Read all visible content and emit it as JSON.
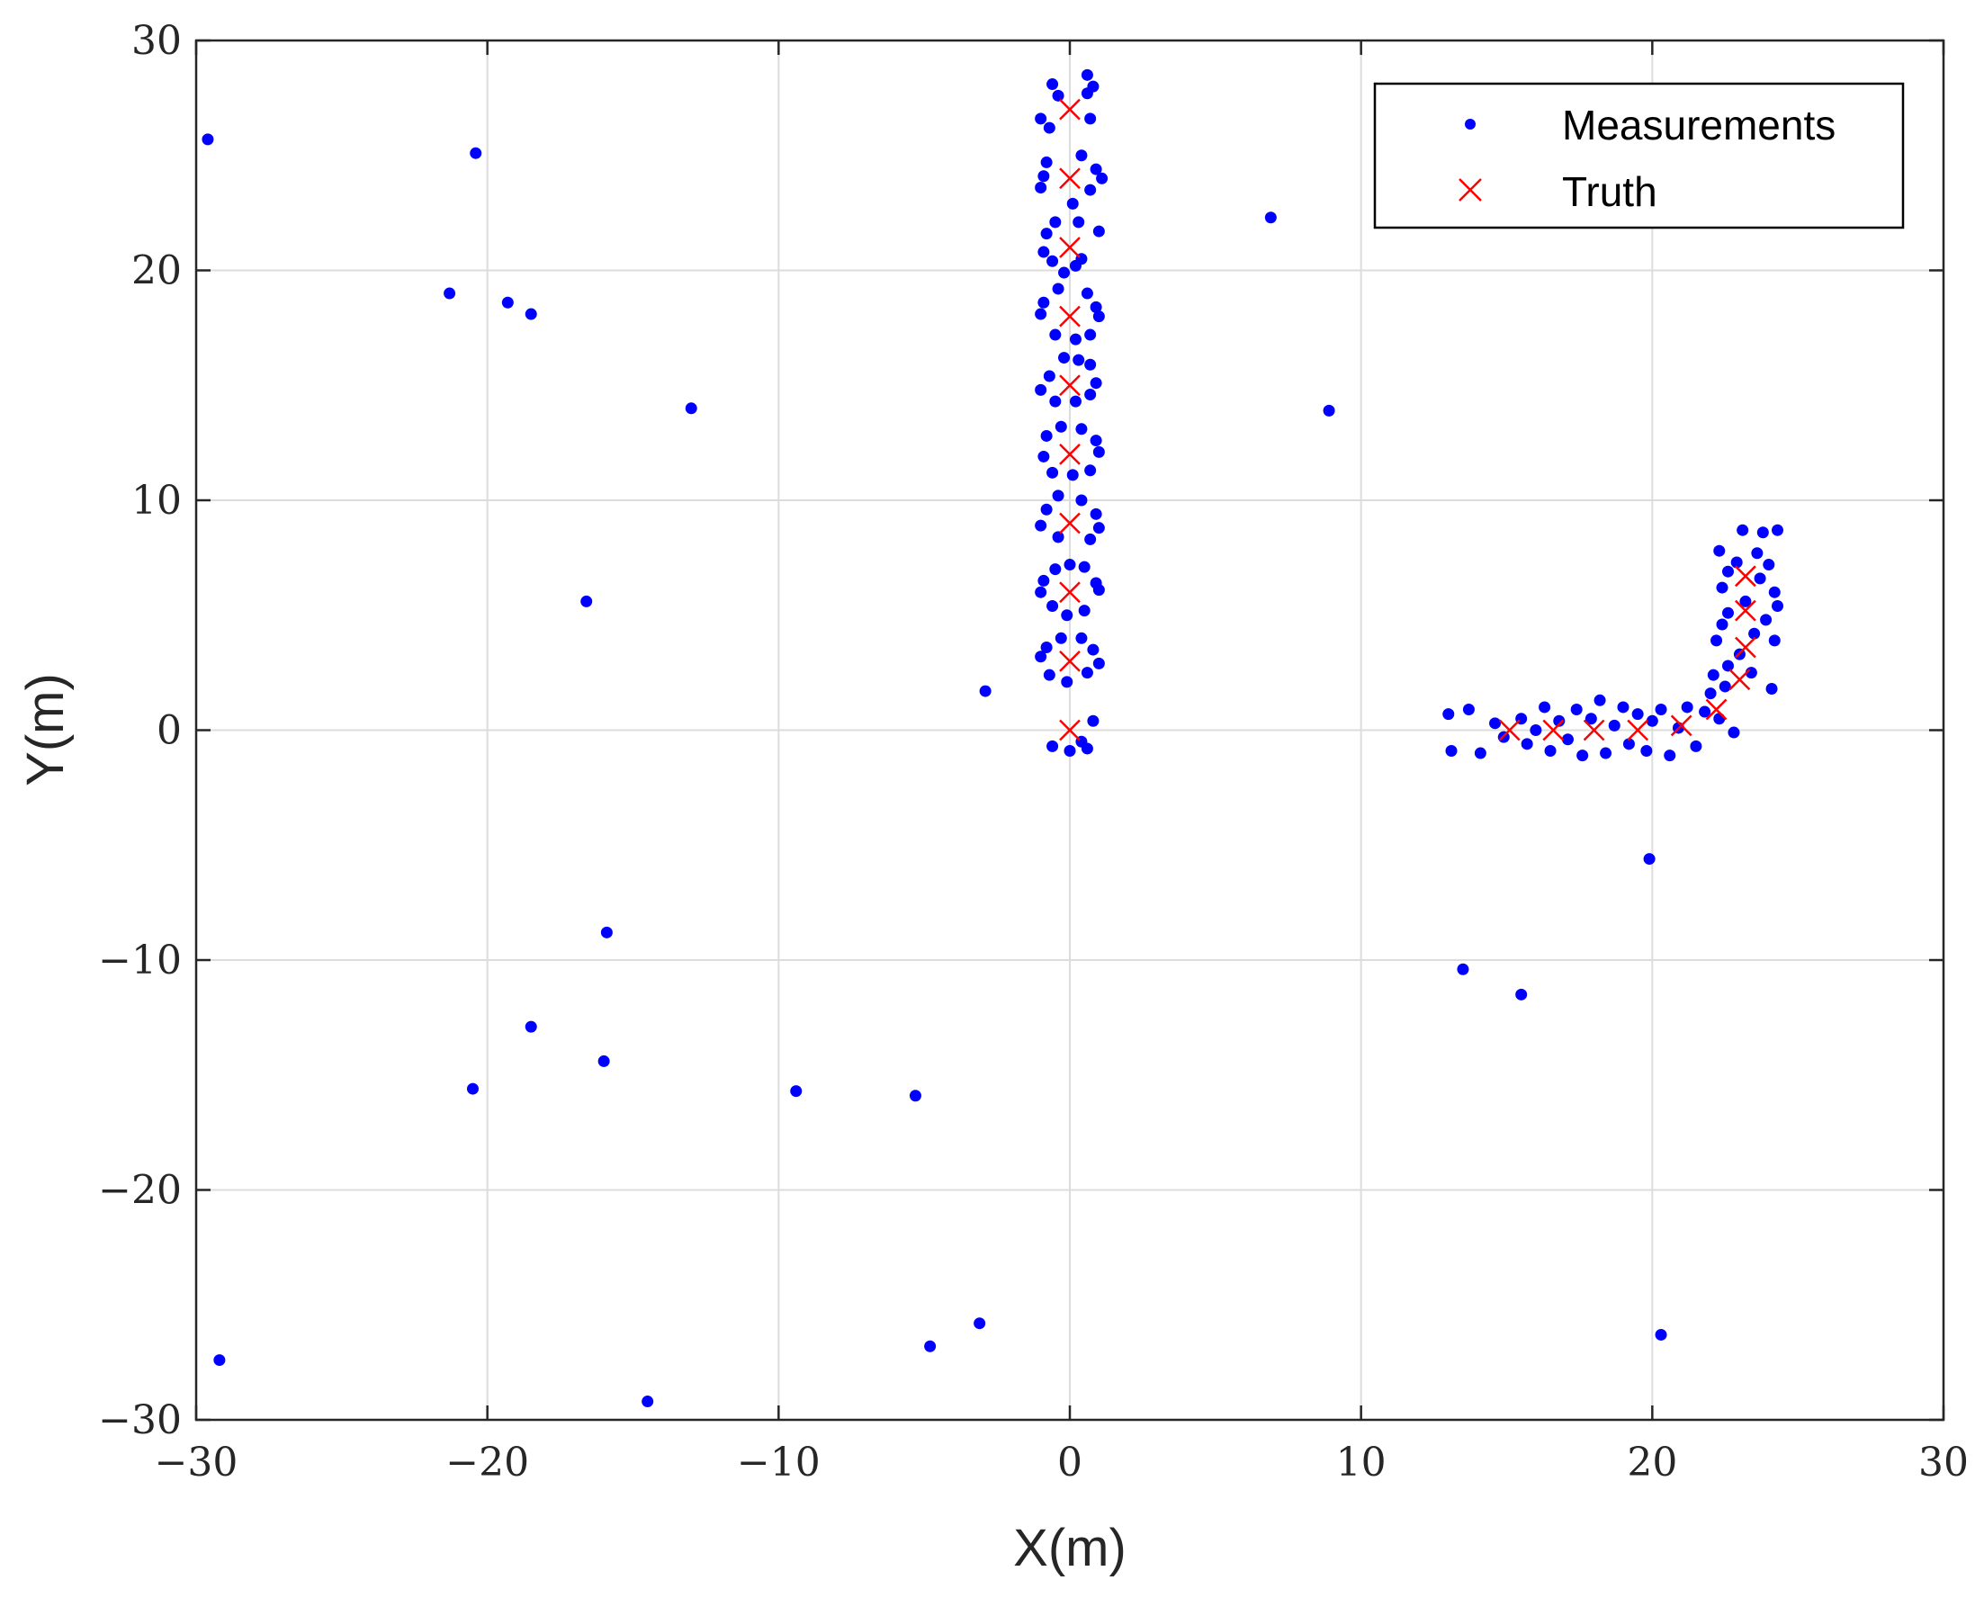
{
  "chart_data": {
    "type": "scatter",
    "xlabel": "X(m)",
    "ylabel": "Y(m)",
    "xlim": [
      -30,
      30
    ],
    "ylim": [
      -30,
      30
    ],
    "xticks": [
      -30,
      -20,
      -10,
      0,
      10,
      20,
      30
    ],
    "yticks": [
      -30,
      -20,
      -10,
      0,
      10,
      20,
      30
    ],
    "xtick_labels": [
      "−30",
      "−20",
      "−10",
      "0",
      "10",
      "20",
      "30"
    ],
    "ytick_labels": [
      "−30",
      "−20",
      "−10",
      "0",
      "10",
      "20",
      "30"
    ],
    "grid": true,
    "legend_position": "top-right",
    "colors": {
      "measurements": "#0000ff",
      "truth": "#ff0000",
      "axes": "#262626",
      "grid": "#dcdcdc"
    },
    "series": [
      {
        "name": "Measurements",
        "marker": "dot",
        "points": [
          [
            -29.6,
            25.7
          ],
          [
            -20.4,
            25.1
          ],
          [
            -21.3,
            19.0
          ],
          [
            -19.3,
            18.6
          ],
          [
            -18.5,
            18.1
          ],
          [
            -13.0,
            14.0
          ],
          [
            -16.6,
            5.6
          ],
          [
            -15.9,
            -8.8
          ],
          [
            -18.5,
            -12.9
          ],
          [
            -16.0,
            -14.4
          ],
          [
            -20.5,
            -15.6
          ],
          [
            -9.4,
            -15.7
          ],
          [
            -5.3,
            -15.9
          ],
          [
            -3.1,
            -25.8
          ],
          [
            -4.8,
            -26.8
          ],
          [
            -14.5,
            -29.2
          ],
          [
            -29.2,
            -27.4
          ],
          [
            -2.9,
            1.7
          ],
          [
            6.9,
            22.3
          ],
          [
            8.9,
            13.9
          ],
          [
            13.5,
            -10.4
          ],
          [
            15.5,
            -11.5
          ],
          [
            19.9,
            -5.6
          ],
          [
            20.3,
            -26.3
          ],
          [
            -0.6,
            28.1
          ],
          [
            0.6,
            28.5
          ],
          [
            0.8,
            28.0
          ],
          [
            -0.4,
            27.6
          ],
          [
            0.6,
            27.7
          ],
          [
            -1.0,
            26.6
          ],
          [
            -0.7,
            26.2
          ],
          [
            0.7,
            26.6
          ],
          [
            0.4,
            25.0
          ],
          [
            -0.8,
            24.7
          ],
          [
            -0.9,
            24.1
          ],
          [
            0.9,
            24.4
          ],
          [
            1.1,
            24.0
          ],
          [
            -1.0,
            23.6
          ],
          [
            0.7,
            23.5
          ],
          [
            0.1,
            22.9
          ],
          [
            -0.5,
            22.1
          ],
          [
            0.3,
            22.1
          ],
          [
            -0.8,
            21.6
          ],
          [
            1.0,
            21.7
          ],
          [
            -0.9,
            20.8
          ],
          [
            -0.6,
            20.4
          ],
          [
            0.4,
            20.5
          ],
          [
            0.2,
            20.2
          ],
          [
            -0.2,
            19.9
          ],
          [
            -0.4,
            19.2
          ],
          [
            0.6,
            19.0
          ],
          [
            -0.9,
            18.6
          ],
          [
            0.9,
            18.4
          ],
          [
            1.0,
            18.0
          ],
          [
            -1.0,
            18.1
          ],
          [
            -0.5,
            17.2
          ],
          [
            0.2,
            17.0
          ],
          [
            0.7,
            17.2
          ],
          [
            -0.2,
            16.2
          ],
          [
            0.3,
            16.1
          ],
          [
            0.7,
            15.9
          ],
          [
            -0.7,
            15.4
          ],
          [
            0.9,
            15.1
          ],
          [
            -1.0,
            14.8
          ],
          [
            -0.5,
            14.3
          ],
          [
            0.2,
            14.3
          ],
          [
            0.7,
            14.6
          ],
          [
            -0.3,
            13.2
          ],
          [
            0.4,
            13.1
          ],
          [
            -0.8,
            12.8
          ],
          [
            0.9,
            12.6
          ],
          [
            1.0,
            12.1
          ],
          [
            -0.9,
            11.9
          ],
          [
            -0.6,
            11.2
          ],
          [
            0.1,
            11.1
          ],
          [
            0.7,
            11.3
          ],
          [
            -0.4,
            10.2
          ],
          [
            0.4,
            10.0
          ],
          [
            -0.8,
            9.6
          ],
          [
            0.9,
            9.4
          ],
          [
            -1.0,
            8.9
          ],
          [
            1.0,
            8.8
          ],
          [
            -0.4,
            8.4
          ],
          [
            0.7,
            8.3
          ],
          [
            0.0,
            7.2
          ],
          [
            -0.5,
            7.0
          ],
          [
            0.5,
            7.1
          ],
          [
            -0.9,
            6.5
          ],
          [
            0.9,
            6.4
          ],
          [
            -1.0,
            6.0
          ],
          [
            1.0,
            6.1
          ],
          [
            -0.6,
            5.4
          ],
          [
            0.5,
            5.2
          ],
          [
            -0.1,
            5.0
          ],
          [
            -0.3,
            4.0
          ],
          [
            0.4,
            4.0
          ],
          [
            -0.8,
            3.6
          ],
          [
            0.8,
            3.5
          ],
          [
            -1.0,
            3.2
          ],
          [
            1.0,
            2.9
          ],
          [
            -0.7,
            2.4
          ],
          [
            0.6,
            2.5
          ],
          [
            -0.1,
            2.1
          ],
          [
            0.8,
            0.4
          ],
          [
            -0.6,
            -0.7
          ],
          [
            0.0,
            -0.9
          ],
          [
            0.6,
            -0.8
          ],
          [
            0.4,
            -0.5
          ],
          [
            13.0,
            0.7
          ],
          [
            13.7,
            0.9
          ],
          [
            13.1,
            -0.9
          ],
          [
            14.1,
            -1.0
          ],
          [
            14.6,
            0.3
          ],
          [
            14.9,
            -0.3
          ],
          [
            15.5,
            0.5
          ],
          [
            15.7,
            -0.6
          ],
          [
            16.0,
            0.0
          ],
          [
            16.3,
            1.0
          ],
          [
            16.5,
            -0.9
          ],
          [
            16.8,
            0.4
          ],
          [
            17.1,
            -0.4
          ],
          [
            17.4,
            0.9
          ],
          [
            17.6,
            -1.1
          ],
          [
            17.9,
            0.5
          ],
          [
            18.2,
            1.3
          ],
          [
            18.4,
            -1.0
          ],
          [
            18.7,
            0.2
          ],
          [
            19.0,
            1.0
          ],
          [
            19.2,
            -0.6
          ],
          [
            19.5,
            0.7
          ],
          [
            19.8,
            -0.9
          ],
          [
            20.0,
            0.4
          ],
          [
            20.3,
            0.9
          ],
          [
            20.6,
            -1.1
          ],
          [
            20.9,
            0.1
          ],
          [
            21.2,
            1.0
          ],
          [
            21.5,
            -0.7
          ],
          [
            21.8,
            0.8
          ],
          [
            22.0,
            1.6
          ],
          [
            22.3,
            0.5
          ],
          [
            22.5,
            1.9
          ],
          [
            22.8,
            -0.1
          ],
          [
            22.1,
            2.4
          ],
          [
            22.6,
            2.8
          ],
          [
            23.0,
            3.3
          ],
          [
            22.2,
            3.9
          ],
          [
            23.5,
            4.2
          ],
          [
            22.4,
            4.6
          ],
          [
            23.9,
            4.8
          ],
          [
            22.6,
            5.1
          ],
          [
            23.2,
            5.6
          ],
          [
            24.3,
            5.4
          ],
          [
            22.4,
            6.2
          ],
          [
            23.7,
            6.6
          ],
          [
            22.6,
            6.9
          ],
          [
            24.0,
            7.2
          ],
          [
            22.3,
            7.8
          ],
          [
            23.1,
            8.7
          ],
          [
            23.8,
            8.6
          ],
          [
            24.3,
            8.7
          ],
          [
            24.1,
            1.8
          ],
          [
            23.4,
            2.5
          ],
          [
            24.2,
            3.9
          ],
          [
            23.6,
            7.7
          ],
          [
            22.9,
            7.3
          ],
          [
            24.2,
            6.0
          ]
        ]
      },
      {
        "name": "Truth",
        "marker": "x",
        "points": [
          [
            0,
            0
          ],
          [
            0,
            3
          ],
          [
            0,
            6
          ],
          [
            0,
            9
          ],
          [
            0,
            12
          ],
          [
            0,
            15
          ],
          [
            0,
            18
          ],
          [
            0,
            21
          ],
          [
            0,
            24
          ],
          [
            0,
            27
          ],
          [
            15.1,
            0.0
          ],
          [
            16.6,
            0.0
          ],
          [
            18.0,
            0.0
          ],
          [
            19.5,
            0.0
          ],
          [
            21.0,
            0.2
          ],
          [
            22.2,
            0.9
          ],
          [
            23.0,
            2.2
          ],
          [
            23.2,
            3.6
          ],
          [
            23.2,
            5.2
          ],
          [
            23.2,
            6.7
          ]
        ]
      }
    ]
  }
}
